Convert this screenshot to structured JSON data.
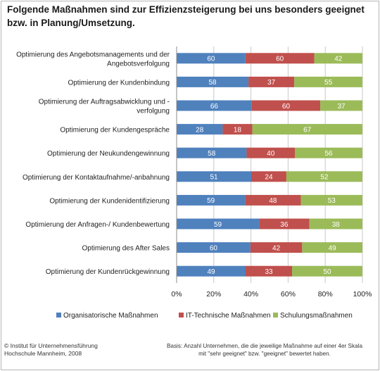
{
  "title_lines": [
    "Folgende Maßnahmen sind zur Effizienzsteigerung bei uns besonders geeignet",
    "bzw. in Planung/Umsetzung."
  ],
  "chart_data": {
    "type": "bar",
    "orientation": "horizontal",
    "stacked": true,
    "normalized": true,
    "categories": [
      [
        "Optimierung des Angebotsmanagements und der",
        "Angebotsverfolgung"
      ],
      [
        "Optimierung der Kundenbindung"
      ],
      [
        "Optimierung der Auftragsabwicklung und -",
        "verfolgung"
      ],
      [
        "Optimierung der Kundengespräche"
      ],
      [
        "Optimierung der Neukundengewinnung"
      ],
      [
        "Optimierung der Kontaktaufnahme/-anbahnung"
      ],
      [
        "Optimierung der Kundenidentifizierung"
      ],
      [
        "Optimierung der Anfragen-/ Kundenbewertung"
      ],
      [
        "Optimierung des After Sales"
      ],
      [
        "Optimierung der Kundenrückgewinnung"
      ]
    ],
    "series": [
      {
        "name": "Organisatorische Maßnahmen",
        "color": "#4f81bd",
        "values": [
          60,
          58,
          66,
          28,
          58,
          51,
          59,
          59,
          60,
          49
        ]
      },
      {
        "name": "IT-Technische Maßnahmen",
        "color": "#c0504d",
        "values": [
          60,
          37,
          60,
          18,
          40,
          24,
          48,
          36,
          42,
          33
        ]
      },
      {
        "name": "Schulungsmaßnahmen",
        "color": "#9bbb59",
        "values": [
          42,
          55,
          37,
          67,
          56,
          52,
          53,
          38,
          49,
          50
        ]
      }
    ],
    "xticks": [
      "0%",
      "20%",
      "40%",
      "60%",
      "80%",
      "100%"
    ],
    "xlim": [
      0,
      100
    ],
    "legend_position": "bottom",
    "grid": "vertical"
  },
  "footer": {
    "left_lines": [
      "© Institut für Unternehmensführung",
      "Hochschule Mannheim, 2008"
    ],
    "right_lines": [
      "Basis: Anzahl Unternehmen, die die jeweilige Maßnahme auf einer 4er Skala",
      "mit  \"sehr geeignet\" bzw.  \"geeignet\" bewertet haben."
    ]
  }
}
